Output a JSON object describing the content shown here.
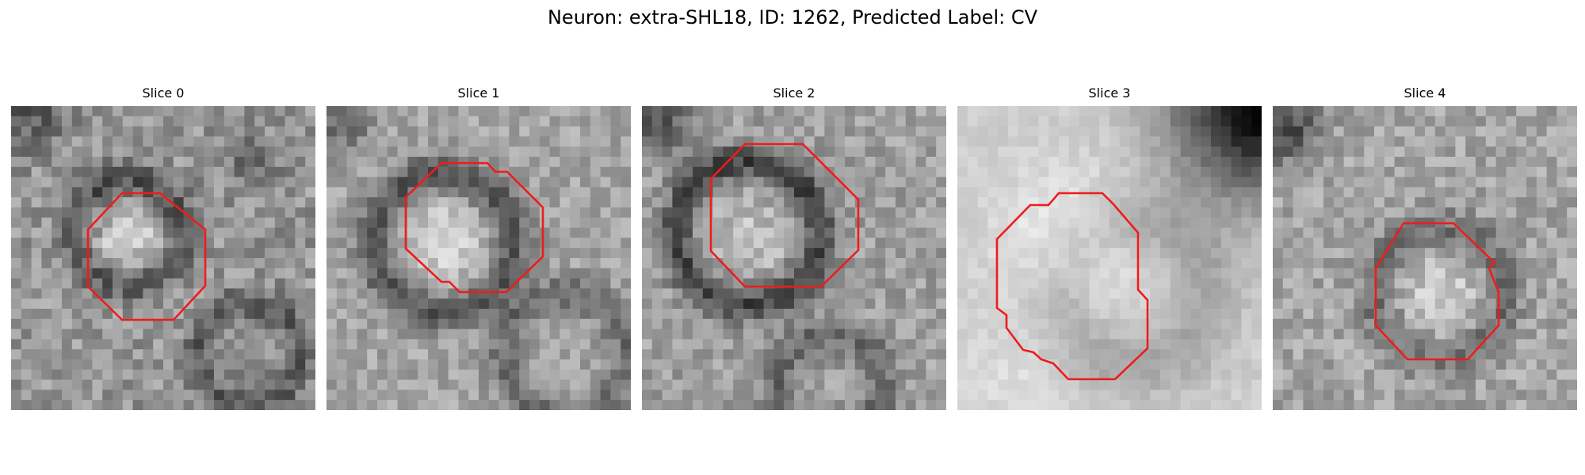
{
  "title": "Neuron: extra-SHL18, ID: 1262, Predicted Label: CV",
  "panels": [
    {
      "title": "Slice 0"
    },
    {
      "title": "Slice 1"
    },
    {
      "title": "Slice 2"
    },
    {
      "title": "Slice 3"
    },
    {
      "title": "Slice 4"
    }
  ],
  "colors": {
    "contour": "#ee1c1c",
    "background": "#ffffff"
  },
  "colormap": "grayscale"
}
